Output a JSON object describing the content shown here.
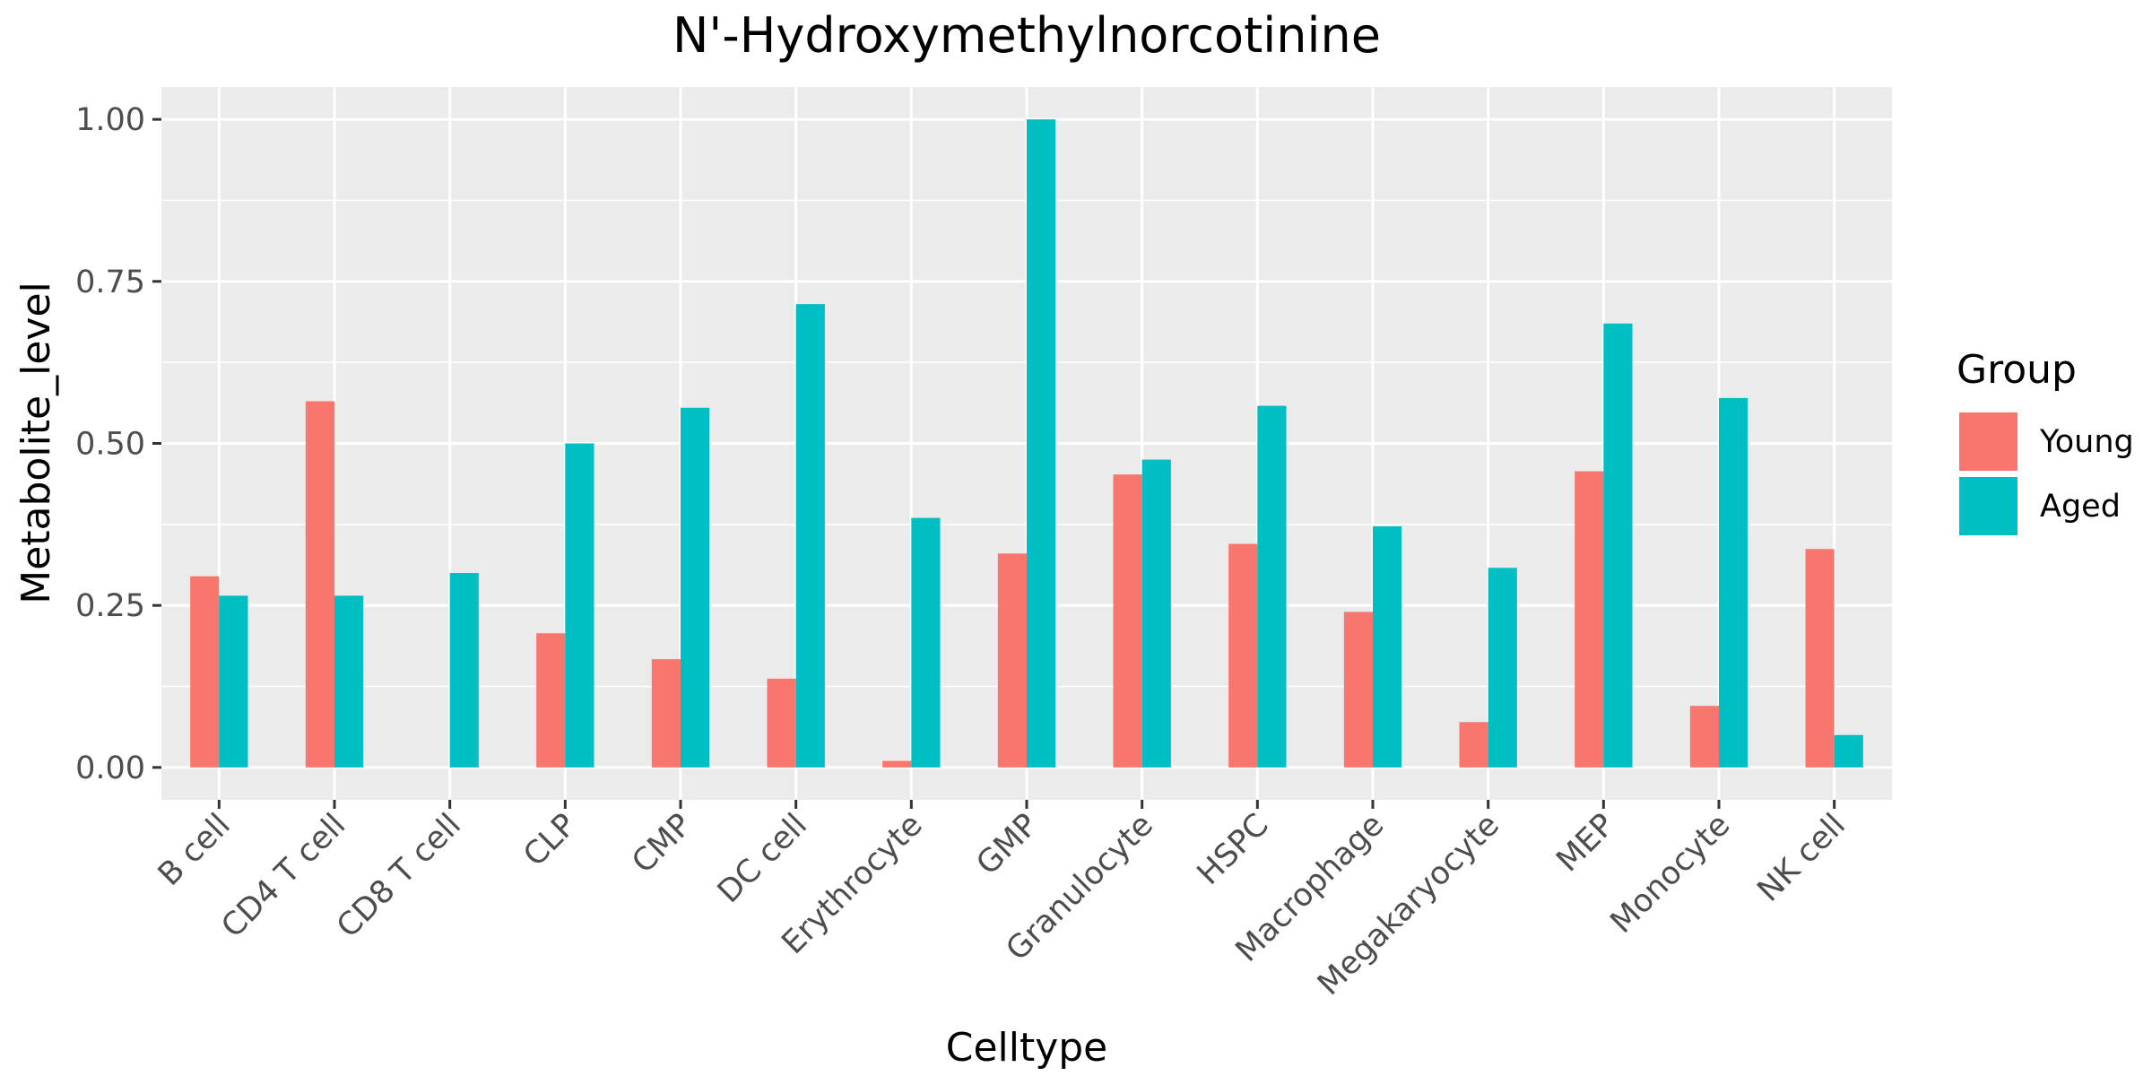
{
  "chart_data": {
    "type": "bar",
    "title": "N'-Hydroxymethylnorcotinine",
    "xlabel": "Celltype",
    "ylabel": "Metabolite_level",
    "ylim": [
      -0.05,
      1.05
    ],
    "yticks": [
      0,
      0.25,
      0.5,
      0.75,
      1
    ],
    "ytick_labels": [
      "0.00",
      "0.25",
      "0.50",
      "0.75",
      "1.00"
    ],
    "grid": true,
    "legend": {
      "title": "Group",
      "position": "right"
    },
    "categories": [
      "B cell",
      "CD4 T cell",
      "CD8 T cell",
      "CLP",
      "CMP",
      "DC cell",
      "Erythrocyte",
      "GMP",
      "Granulocyte",
      "HSPC",
      "Macrophage",
      "Megakaryocyte",
      "MEP",
      "Monocyte",
      "NK cell"
    ],
    "series": [
      {
        "name": "Young",
        "color": "#F8766D",
        "values": [
          0.295,
          0.565,
          0.0,
          0.207,
          0.167,
          0.137,
          0.01,
          0.33,
          0.452,
          0.345,
          0.24,
          0.07,
          0.457,
          0.095,
          0.337
        ]
      },
      {
        "name": "Aged",
        "color": "#00BFC4",
        "values": [
          0.265,
          0.265,
          0.3,
          0.5,
          0.555,
          0.715,
          0.385,
          1.0,
          0.475,
          0.558,
          0.372,
          0.308,
          0.685,
          0.57,
          0.05
        ]
      }
    ]
  }
}
